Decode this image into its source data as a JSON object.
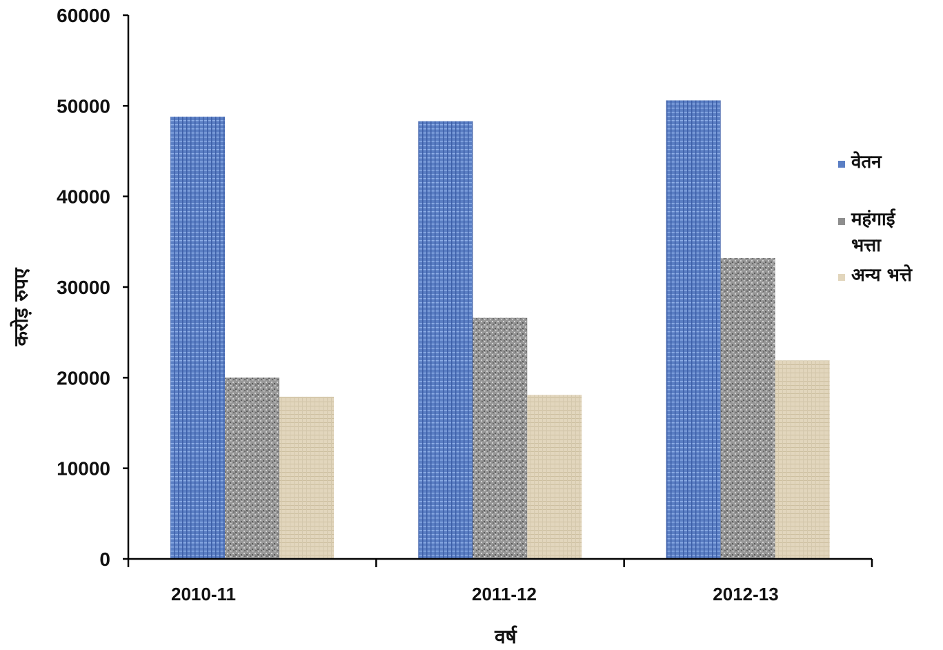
{
  "chart_data": {
    "type": "bar",
    "categories": [
      "2010-11",
      "2011-12",
      "2012-13"
    ],
    "series": [
      {
        "name": "वेतन",
        "values": [
          48800,
          48300,
          50600
        ]
      },
      {
        "name": "महंगाई भत्ता",
        "values": [
          20000,
          26600,
          33200
        ]
      },
      {
        "name": "अन्य भत्ते",
        "values": [
          17900,
          18100,
          21900
        ]
      }
    ],
    "title": "",
    "xlabel": "वर्ष",
    "ylabel": "करोड़ रुपए",
    "ylim": [
      0,
      60000
    ],
    "yticks": [
      0,
      10000,
      20000,
      30000,
      40000,
      50000,
      60000
    ],
    "grid": false,
    "legend_position": "right",
    "legend_lines": [
      [
        "वेतन"
      ],
      [
        "महंगाई",
        "भत्ता"
      ],
      [
        "अन्य भत्ते"
      ]
    ],
    "colors": [
      "#5b7fc4",
      "#8e8e8e",
      "#e2d6bd"
    ]
  }
}
